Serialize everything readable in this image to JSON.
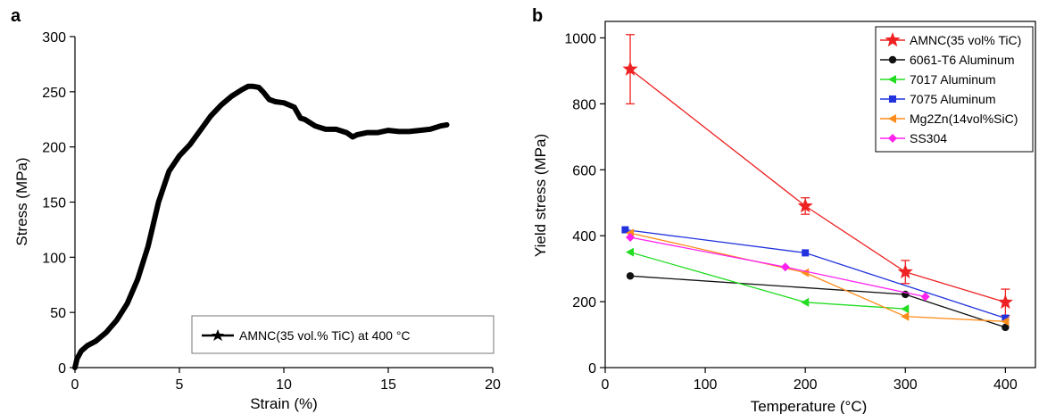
{
  "panels": [
    {
      "letter": "a"
    },
    {
      "letter": "b"
    }
  ],
  "chart_data": [
    {
      "type": "line",
      "panel": "a",
      "xlabel": "Strain (%)",
      "ylabel": "Stress (MPa)",
      "xlim": [
        0,
        20
      ],
      "ylim": [
        0,
        300
      ],
      "xticks": [
        0,
        5,
        10,
        15,
        20
      ],
      "yticks": [
        0,
        50,
        100,
        150,
        200,
        250,
        300
      ],
      "legend_position": "bottom-right",
      "series": [
        {
          "name": "AMNC(35 vol.% TiC) at 400 °C",
          "color": "#000000",
          "x": [
            0,
            0.1,
            0.3,
            0.6,
            1.0,
            1.5,
            2.0,
            2.5,
            3.0,
            3.5,
            4.0,
            4.5,
            5.0,
            5.5,
            6.0,
            6.5,
            7.0,
            7.5,
            8.0,
            8.3,
            8.5,
            8.8,
            9.0,
            9.3,
            9.6,
            10.0,
            10.5,
            10.8,
            11.0,
            11.5,
            12.0,
            12.5,
            13.0,
            13.3,
            13.5,
            14.0,
            14.5,
            15.0,
            15.5,
            16.0,
            16.5,
            17.0,
            17.5,
            17.8
          ],
          "y": [
            0,
            8,
            15,
            20,
            24,
            32,
            43,
            58,
            80,
            110,
            150,
            178,
            192,
            202,
            215,
            228,
            238,
            246,
            252,
            255,
            255,
            254,
            250,
            243,
            241,
            240,
            236,
            226,
            225,
            219,
            216,
            216,
            213,
            209,
            211,
            213,
            213,
            215,
            214,
            214,
            215,
            216,
            219,
            220
          ]
        }
      ]
    },
    {
      "type": "line",
      "panel": "b",
      "xlabel": "Temperature (°C)",
      "ylabel": "Yield stress (MPa)",
      "xlim": [
        0,
        430
      ],
      "ylim": [
        0,
        1050
      ],
      "xticks": [
        0,
        100,
        200,
        300,
        400
      ],
      "yticks": [
        0,
        200,
        400,
        600,
        800,
        1000
      ],
      "legend_position": "top-right",
      "series": [
        {
          "name": "AMNC(35 vol% TiC)",
          "color": "#ee2222",
          "marker": "star",
          "x": [
            25,
            200,
            300,
            400
          ],
          "y": [
            905,
            490,
            290,
            198
          ],
          "err": [
            105,
            25,
            35,
            40
          ]
        },
        {
          "name": "6061-T6 Aluminum",
          "color": "#111111",
          "marker": "circle",
          "x": [
            25,
            300,
            400
          ],
          "y": [
            278,
            222,
            122
          ]
        },
        {
          "name": "7017 Aluminum",
          "color": "#22dd22",
          "marker": "triangle-left",
          "x": [
            25,
            200,
            300
          ],
          "y": [
            350,
            198,
            178
          ]
        },
        {
          "name": "7075 Aluminum",
          "color": "#2233dd",
          "marker": "square",
          "x": [
            20,
            200,
            400
          ],
          "y": [
            418,
            348,
            150
          ]
        },
        {
          "name": "Mg2Zn(14vol%SiC)",
          "color": "#ff8c1a",
          "marker": "triangle-left",
          "x": [
            25,
            200,
            300,
            400
          ],
          "y": [
            408,
            288,
            155,
            140
          ]
        },
        {
          "name": "SS304",
          "color": "#ff22ee",
          "marker": "diamond",
          "x": [
            25,
            180,
            320
          ],
          "y": [
            395,
            305,
            215
          ]
        }
      ]
    }
  ]
}
